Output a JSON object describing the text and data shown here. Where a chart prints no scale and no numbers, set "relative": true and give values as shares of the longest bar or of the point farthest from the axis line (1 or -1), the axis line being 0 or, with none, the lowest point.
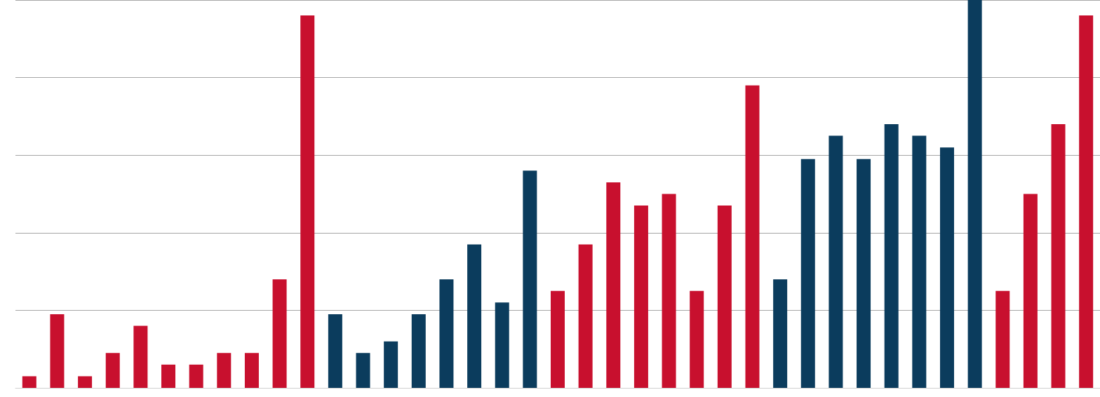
{
  "chart_data": {
    "type": "bar",
    "relative": true,
    "grid": "y",
    "categories": [
      null,
      null,
      null,
      null,
      null,
      null,
      null,
      null,
      null,
      null,
      null,
      null,
      null,
      null,
      null,
      null,
      null,
      null,
      null,
      null,
      null,
      null,
      null,
      null,
      null,
      null,
      null,
      null,
      null,
      null,
      null,
      null,
      null,
      null,
      null,
      null,
      null,
      null,
      null
    ],
    "values": [
      0.03,
      0.19,
      0.03,
      0.09,
      0.16,
      0.06,
      0.06,
      0.09,
      0.09,
      0.28,
      0.96,
      0.19,
      0.09,
      0.12,
      0.19,
      0.28,
      0.37,
      0.22,
      0.56,
      0.25,
      0.37,
      0.53,
      0.47,
      0.5,
      0.25,
      0.47,
      0.78,
      0.28,
      0.59,
      0.65,
      0.59,
      0.68,
      0.65,
      0.62,
      1,
      0.25,
      0.5,
      0.68,
      0.96
    ],
    "colors": [
      "#c8102e",
      "#c8102e",
      "#c8102e",
      "#c8102e",
      "#c8102e",
      "#c8102e",
      "#c8102e",
      "#c8102e",
      "#c8102e",
      "#c8102e",
      "#c8102e",
      "#0b3c5d",
      "#0b3c5d",
      "#0b3c5d",
      "#0b3c5d",
      "#0b3c5d",
      "#0b3c5d",
      "#0b3c5d",
      "#0b3c5d",
      "#c8102e",
      "#c8102e",
      "#c8102e",
      "#c8102e",
      "#c8102e",
      "#c8102e",
      "#c8102e",
      "#c8102e",
      "#0b3c5d",
      "#0b3c5d",
      "#0b3c5d",
      "#0b3c5d",
      "#0b3c5d",
      "#0b3c5d",
      "#0b3c5d",
      "#0b3c5d",
      "#c8102e",
      "#c8102e",
      "#c8102e",
      "#c8102e"
    ]
  }
}
